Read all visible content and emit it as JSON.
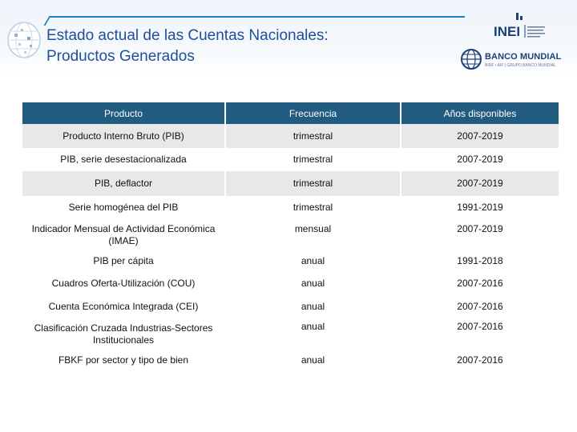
{
  "slide": {
    "title_line1": "Estado actual de las Cuentas Nacionales:",
    "title_line2": "Productos Generados"
  },
  "logos": {
    "inei_text": "INEI",
    "banco_mundial_text": "BANCO MUNDIAL",
    "banco_mundial_sub": "BIRF • AIF | GRUPO BANCO MUNDIAL"
  },
  "table": {
    "headers": [
      "Producto",
      "Frecuencia",
      "Años disponibles"
    ],
    "rows": [
      [
        "Producto Interno Bruto (PIB)",
        "trimestral",
        "2007-2019"
      ],
      [
        "PIB, serie desestacionalizada",
        "trimestral",
        "2007-2019"
      ],
      [
        "PIB, deflactor",
        "trimestral",
        "2007-2019"
      ],
      [
        "Serie homogénea del PIB",
        "trimestral",
        "1991-2019"
      ],
      [
        "Indicador Mensual de Actividad Económica (IMAE)",
        "mensual",
        "2007-2019"
      ],
      [
        "PIB per cápita",
        "anual",
        "1991-2018"
      ],
      [
        "Cuadros Oferta-Utilización (COU)",
        "anual",
        "2007-2016"
      ],
      [
        "Cuenta Económica Integrada (CEI)",
        "anual",
        "2007-2016"
      ],
      [
        "Clasificación Cruzada Industrias-Sectores Institucionales",
        "anual",
        "2007-2016"
      ],
      [
        "FBKF por sector y tipo de bien",
        "anual",
        "2007-2016"
      ]
    ]
  },
  "colors": {
    "header_bg": "#215b7f",
    "row_shade": "#e8e8e8",
    "title": "#1f4e9a",
    "accent_line": "#1f7fc4"
  }
}
